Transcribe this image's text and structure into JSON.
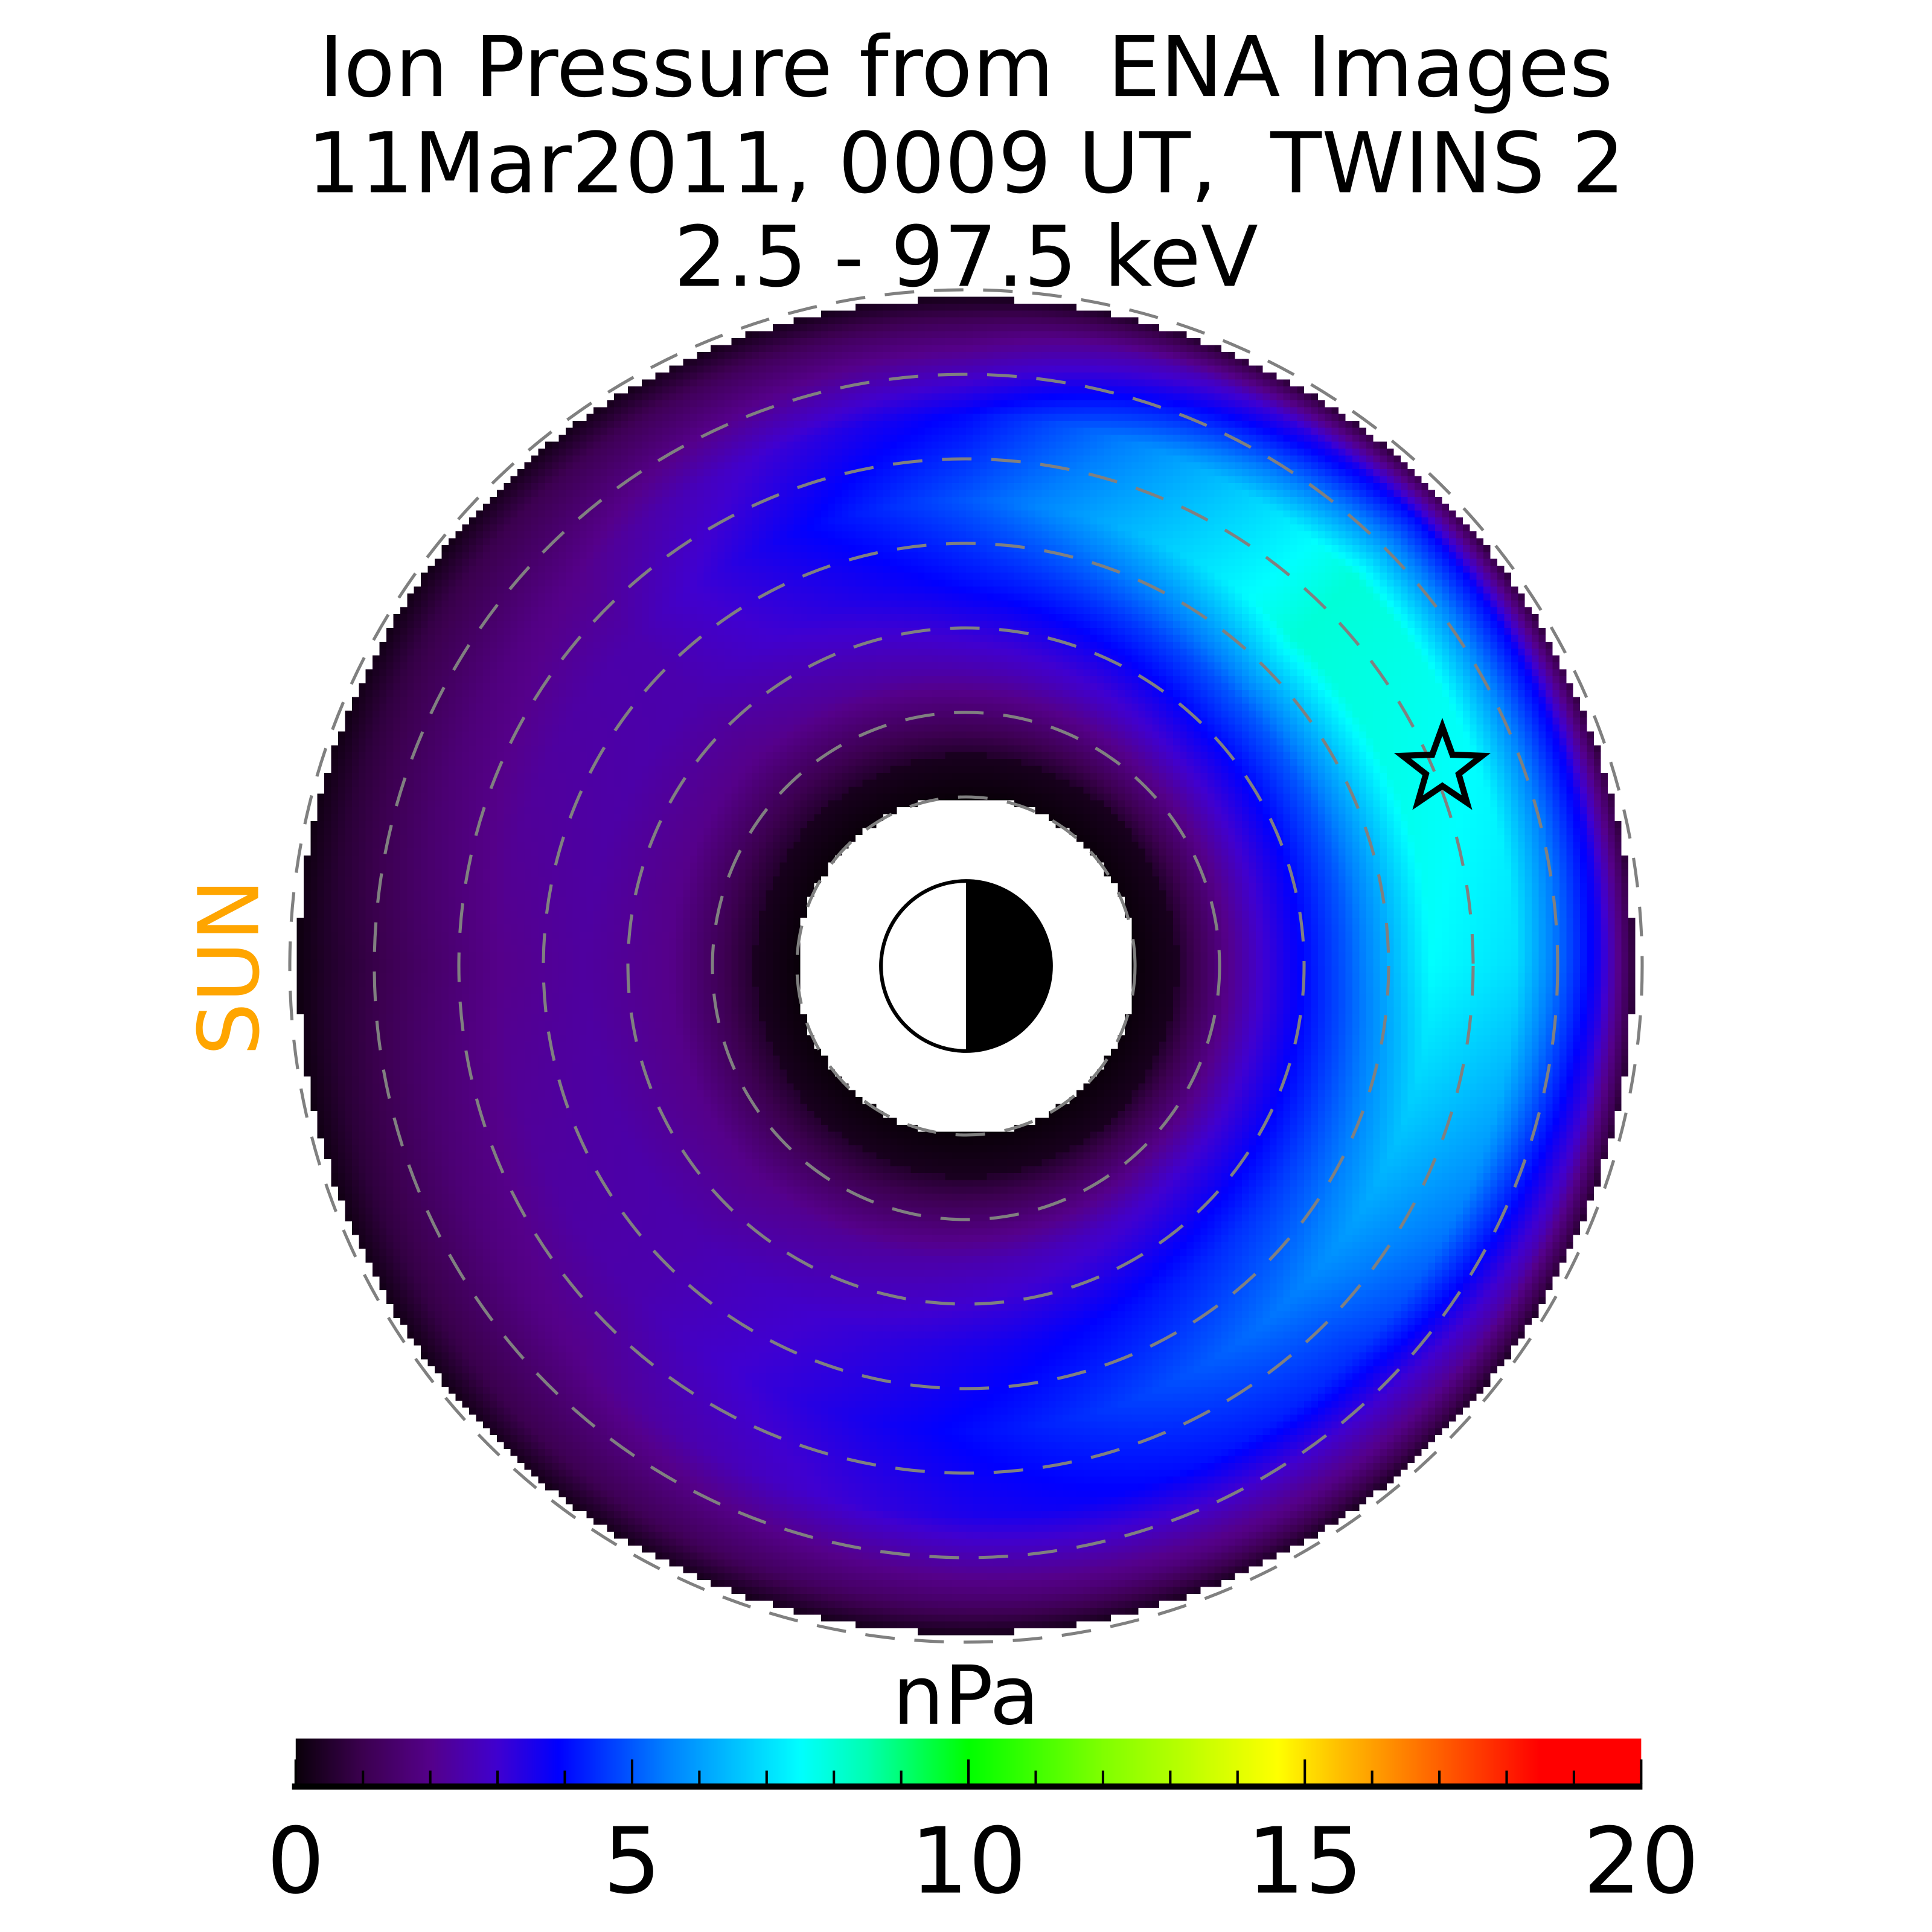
{
  "chart_data": {
    "type": "heatmap",
    "title": [
      "Ion Pressure from  ENA Images",
      "11Mar2011, 0009 UT,  TWINS 2",
      "2.5 - 97.5 keV"
    ],
    "sun_label": "SUN",
    "colorbar": {
      "label": "nPa",
      "range": [
        0,
        20
      ],
      "ticks": [
        "0",
        "5",
        "10",
        "15",
        "20"
      ],
      "tick_values": [
        0,
        5,
        10,
        15,
        20
      ],
      "minor_tick_step": 1,
      "colormap": [
        [
          0,
          "#0a000a"
        ],
        [
          1,
          "#3c0050"
        ],
        [
          2,
          "#55008a"
        ],
        [
          3,
          "#4000d0"
        ],
        [
          3.9,
          "#0000ff"
        ],
        [
          5.5,
          "#0080ff"
        ],
        [
          7.5,
          "#00ffff"
        ],
        [
          8.5,
          "#00ffb0"
        ],
        [
          10,
          "#00ff00"
        ],
        [
          12,
          "#80ff00"
        ],
        [
          14.6,
          "#ffff00"
        ],
        [
          15.5,
          "#ffc000"
        ],
        [
          17,
          "#ff6000"
        ],
        [
          18.5,
          "#ff0000"
        ],
        [
          20,
          "#ff0000"
        ]
      ]
    },
    "grid": {
      "dashed_circles_Re": [
        2,
        3,
        4,
        5,
        6,
        7,
        8
      ],
      "color": "#808080"
    },
    "data_extent_Re": [
      2.0,
      7.9
    ],
    "orientation": "sun-left",
    "pressure_grid": {
      "L": [
        2.5,
        3.5,
        4.5,
        5.5,
        6.5,
        7.5
      ],
      "MLT": [
        0,
        3,
        6,
        9,
        12,
        15,
        18,
        21
      ],
      "values": [
        [
          0.5,
          3.0,
          5.0,
          7.5,
          7.0,
          3.5
        ],
        [
          0.5,
          3.0,
          5.0,
          8.0,
          8.0,
          4.0
        ],
        [
          0.5,
          2.5,
          4.0,
          5.0,
          4.0,
          1.5
        ],
        [
          0.5,
          2.0,
          2.5,
          2.5,
          2.0,
          1.0
        ],
        [
          0.5,
          2.0,
          2.3,
          2.0,
          1.3,
          0.5
        ],
        [
          0.5,
          2.0,
          2.5,
          2.5,
          2.0,
          1.0
        ],
        [
          0.5,
          2.5,
          3.5,
          4.0,
          3.5,
          1.5
        ],
        [
          0.5,
          3.0,
          4.5,
          5.5,
          4.5,
          2.0
        ]
      ]
    },
    "marker": {
      "symbol": "star",
      "L": 6.1,
      "MLT": 1.5
    }
  }
}
